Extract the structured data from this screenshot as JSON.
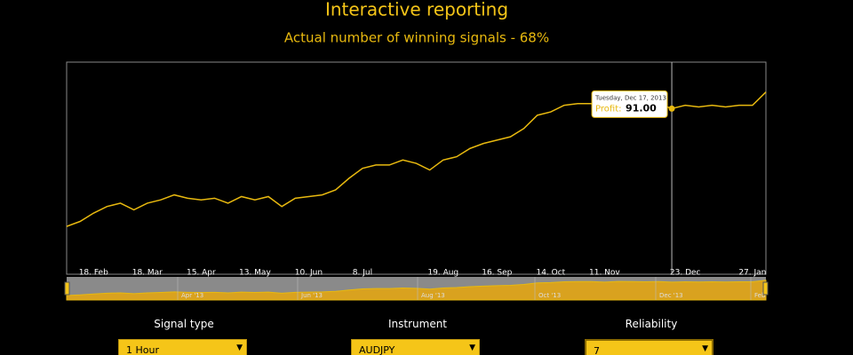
{
  "chart_data": {
    "type": "line",
    "title": "Interactive reporting",
    "subtitle": "Actual number of winning signals - 68%",
    "categories": [
      null,
      null,
      "18. Feb",
      null,
      null,
      null,
      "18. Mar",
      null,
      null,
      null,
      "15. Apr",
      null,
      null,
      null,
      "13. May",
      null,
      null,
      null,
      "10. Jun",
      null,
      null,
      null,
      "8. Jul",
      null,
      null,
      null,
      null,
      null,
      "19. Aug",
      null,
      null,
      null,
      "16. Sep",
      null,
      null,
      null,
      "14. Oct",
      null,
      null,
      null,
      "11. Nov",
      null,
      null,
      null,
      null,
      null,
      "23. Dec",
      null,
      null,
      null,
      null,
      "27. Jan",
      null
    ],
    "series": [
      {
        "name": "Profit",
        "color": "#e8b90f",
        "values": [
          20,
          23,
          28,
          32,
          34,
          30,
          34,
          36,
          39,
          37,
          36,
          37,
          34,
          38,
          36,
          38,
          32,
          37,
          38,
          39,
          42,
          49,
          55,
          57,
          57,
          60,
          58,
          54,
          60,
          62,
          67,
          70,
          72,
          74,
          79,
          87,
          89,
          93,
          94,
          94,
          91,
          95,
          94,
          93,
          94,
          91,
          93,
          92,
          93,
          92,
          93,
          93,
          101
        ]
      }
    ],
    "ylim": [
      -4,
      119
    ],
    "tooltip": {
      "index": 45,
      "date": "Tuesday, Dec 17, 2013",
      "label": "Profit:",
      "value_label": "91.00"
    },
    "navigator_labels": [
      "Apr '13",
      "Jun '13",
      "Aug '13",
      "Oct '13",
      "Dec '13",
      "Feb"
    ]
  },
  "controls": [
    {
      "label": "Signal type",
      "value": "1 Hour"
    },
    {
      "label": "Instrument",
      "value": "AUDJPY"
    },
    {
      "label": "Reliability",
      "value": "7"
    }
  ]
}
